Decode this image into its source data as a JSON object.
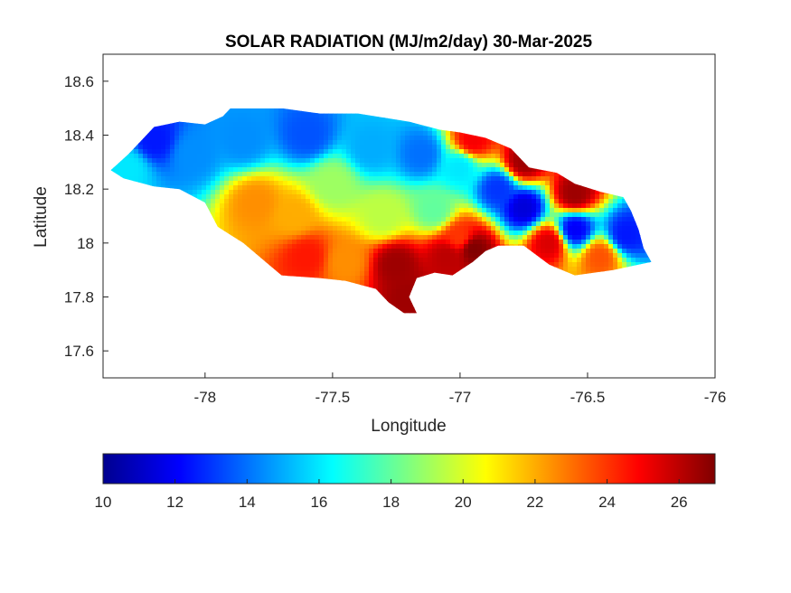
{
  "chart_data": {
    "type": "heatmap",
    "title": "SOLAR RADIATION (MJ/m2/day) 30-Mar-2025",
    "xlabel": "Longitude",
    "ylabel": "Latitude",
    "xlim": [
      -78.4,
      -76
    ],
    "ylim": [
      17.5,
      18.7
    ],
    "x_ticks": [
      -78,
      -77.5,
      -77,
      -76.5,
      -76
    ],
    "x_tick_labels": [
      "-78",
      "-77.5",
      "-77",
      "-76.5",
      "-76"
    ],
    "y_ticks": [
      17.6,
      17.8,
      18,
      18.2,
      18.4,
      18.6
    ],
    "y_tick_labels": [
      "17.6",
      "17.8",
      "18",
      "18.2",
      "18.4",
      "18.6"
    ],
    "colormap": "jet",
    "colorbar": {
      "location": "below",
      "clim": [
        10,
        27
      ],
      "ticks": [
        10,
        12,
        14,
        16,
        18,
        20,
        22,
        24,
        26
      ],
      "tick_labels": [
        "10",
        "12",
        "14",
        "16",
        "18",
        "20",
        "22",
        "24",
        "26"
      ]
    },
    "outline": [
      [
        -78.37,
        18.27
      ],
      [
        -78.3,
        18.33
      ],
      [
        -78.25,
        18.38
      ],
      [
        -78.2,
        18.43
      ],
      [
        -78.1,
        18.45
      ],
      [
        -78.0,
        18.44
      ],
      [
        -77.93,
        18.47
      ],
      [
        -77.9,
        18.5
      ],
      [
        -77.7,
        18.5
      ],
      [
        -77.55,
        18.48
      ],
      [
        -77.4,
        18.48
      ],
      [
        -77.2,
        18.45
      ],
      [
        -77.08,
        18.42
      ],
      [
        -77.0,
        18.41
      ],
      [
        -76.9,
        18.39
      ],
      [
        -76.8,
        18.35
      ],
      [
        -76.73,
        18.28
      ],
      [
        -76.62,
        18.26
      ],
      [
        -76.55,
        18.22
      ],
      [
        -76.45,
        18.19
      ],
      [
        -76.36,
        18.17
      ],
      [
        -76.33,
        18.12
      ],
      [
        -76.3,
        18.05
      ],
      [
        -76.28,
        17.98
      ],
      [
        -76.25,
        17.93
      ],
      [
        -76.4,
        17.9
      ],
      [
        -76.55,
        17.88
      ],
      [
        -76.65,
        17.92
      ],
      [
        -76.75,
        17.99
      ],
      [
        -76.85,
        17.99
      ],
      [
        -76.9,
        17.97
      ],
      [
        -76.95,
        17.93
      ],
      [
        -77.03,
        17.88
      ],
      [
        -77.1,
        17.89
      ],
      [
        -77.17,
        17.87
      ],
      [
        -77.2,
        17.8
      ],
      [
        -77.17,
        17.74
      ],
      [
        -77.22,
        17.74
      ],
      [
        -77.28,
        17.78
      ],
      [
        -77.33,
        17.83
      ],
      [
        -77.45,
        17.86
      ],
      [
        -77.55,
        17.87
      ],
      [
        -77.7,
        17.88
      ],
      [
        -77.75,
        17.92
      ],
      [
        -77.85,
        18.0
      ],
      [
        -77.95,
        18.06
      ],
      [
        -78.0,
        18.15
      ],
      [
        -78.1,
        18.2
      ],
      [
        -78.2,
        18.21
      ],
      [
        -78.32,
        18.24
      ]
    ],
    "field_centers": [
      {
        "lon": -78.2,
        "lat": 18.38,
        "value": 12.5
      },
      {
        "lon": -78.05,
        "lat": 18.33,
        "value": 14.5
      },
      {
        "lon": -77.85,
        "lat": 18.38,
        "value": 14.5
      },
      {
        "lon": -77.6,
        "lat": 18.4,
        "value": 13.5
      },
      {
        "lon": -77.35,
        "lat": 18.35,
        "value": 15.0
      },
      {
        "lon": -77.15,
        "lat": 18.33,
        "value": 14.0
      },
      {
        "lon": -77.0,
        "lat": 18.28,
        "value": 16.0
      },
      {
        "lon": -76.85,
        "lat": 18.2,
        "value": 13.0
      },
      {
        "lon": -76.75,
        "lat": 18.13,
        "value": 11.5
      },
      {
        "lon": -76.55,
        "lat": 18.05,
        "value": 12.0
      },
      {
        "lon": -76.35,
        "lat": 18.03,
        "value": 12.5
      },
      {
        "lon": -77.5,
        "lat": 18.22,
        "value": 19.0
      },
      {
        "lon": -77.65,
        "lat": 18.1,
        "value": 22.0
      },
      {
        "lon": -77.8,
        "lat": 18.15,
        "value": 22.5
      },
      {
        "lon": -77.3,
        "lat": 18.1,
        "value": 19.5
      },
      {
        "lon": -77.1,
        "lat": 18.12,
        "value": 18.0
      },
      {
        "lon": -76.95,
        "lat": 18.38,
        "value": 25.0
      },
      {
        "lon": -76.75,
        "lat": 18.3,
        "value": 26.5
      },
      {
        "lon": -76.55,
        "lat": 18.18,
        "value": 26.5
      },
      {
        "lon": -76.65,
        "lat": 18.0,
        "value": 25.5
      },
      {
        "lon": -76.45,
        "lat": 17.95,
        "value": 23.5
      },
      {
        "lon": -77.6,
        "lat": 17.95,
        "value": 24.5
      },
      {
        "lon": -77.45,
        "lat": 17.93,
        "value": 22.5
      },
      {
        "lon": -77.25,
        "lat": 17.92,
        "value": 26.5
      },
      {
        "lon": -77.2,
        "lat": 17.8,
        "value": 26.5
      },
      {
        "lon": -77.05,
        "lat": 17.95,
        "value": 26.0
      },
      {
        "lon": -76.95,
        "lat": 17.98,
        "value": 27.0
      },
      {
        "lon": -77.0,
        "lat": 18.02,
        "value": 24.0
      },
      {
        "lon": -78.3,
        "lat": 18.28,
        "value": 16.0
      }
    ]
  }
}
